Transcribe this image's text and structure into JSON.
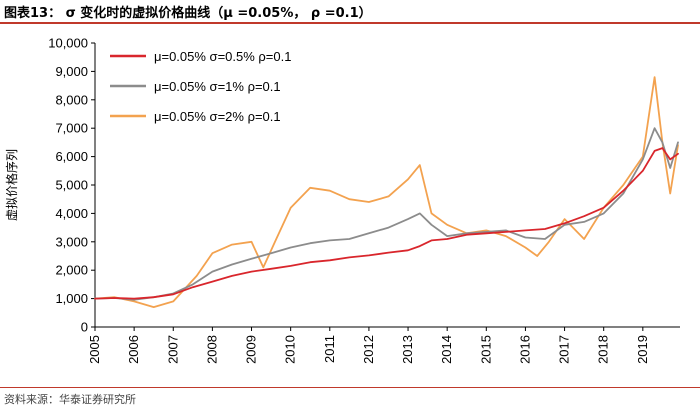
{
  "header": {
    "title": "图表13：  σ 变化时的虚拟价格曲线（μ =0.05%， ρ =0.1）"
  },
  "footer": {
    "source": "资料来源：华泰证券研究所"
  },
  "chart_data": {
    "type": "line",
    "title": "σ 变化时的虚拟价格曲线（μ =0.05%， ρ =0.1）",
    "ylabel": "虚拟价格序列",
    "xlabel": "",
    "ylim": [
      0,
      10000
    ],
    "xlim": [
      2005,
      2019.95
    ],
    "yticks": [
      0,
      1000,
      2000,
      3000,
      4000,
      5000,
      6000,
      7000,
      8000,
      9000,
      10000
    ],
    "ytick_labels": [
      "0",
      "1,000",
      "2,000",
      "3,000",
      "4,000",
      "5,000",
      "6,000",
      "7,000",
      "8,000",
      "9,000",
      "10,000"
    ],
    "xticks": [
      "2005",
      "2006",
      "2007",
      "2008",
      "2009",
      "2010",
      "2011",
      "2012",
      "2013",
      "2014",
      "2015",
      "2016",
      "2017",
      "2018",
      "2019"
    ],
    "grid": false,
    "legend_position": "top-left",
    "series": [
      {
        "name": "μ=0.05% σ=0.5% ρ=0.1",
        "color": "#d9262c",
        "x": [
          2005,
          2005.5,
          2006,
          2006.5,
          2007,
          2007.5,
          2008,
          2008.5,
          2009,
          2009.5,
          2010,
          2010.5,
          2011,
          2011.5,
          2012,
          2012.5,
          2013,
          2013.3,
          2013.6,
          2014,
          2014.5,
          2015,
          2015.5,
          2016,
          2016.5,
          2017,
          2017.5,
          2018,
          2018.5,
          2019,
          2019.3,
          2019.5,
          2019.7,
          2019.9
        ],
        "values": [
          1000,
          1020,
          1000,
          1050,
          1150,
          1400,
          1600,
          1800,
          1950,
          2050,
          2150,
          2280,
          2350,
          2450,
          2520,
          2620,
          2700,
          2850,
          3050,
          3100,
          3250,
          3300,
          3350,
          3400,
          3450,
          3650,
          3900,
          4200,
          4800,
          5500,
          6200,
          6300,
          5900,
          6100
        ]
      },
      {
        "name": "μ=0.05% σ=1% ρ=0.1",
        "color": "#8c8c8c",
        "x": [
          2005,
          2005.5,
          2006,
          2006.5,
          2007,
          2007.5,
          2008,
          2008.5,
          2009,
          2009.5,
          2010,
          2010.5,
          2011,
          2011.5,
          2012,
          2012.5,
          2013,
          2013.3,
          2013.6,
          2014,
          2014.5,
          2015,
          2015.5,
          2016,
          2016.5,
          2017,
          2017.5,
          2018,
          2018.5,
          2019,
          2019.3,
          2019.5,
          2019.7,
          2019.9
        ],
        "values": [
          1000,
          1020,
          960,
          1050,
          1180,
          1500,
          1950,
          2200,
          2400,
          2600,
          2800,
          2950,
          3050,
          3100,
          3300,
          3500,
          3800,
          4000,
          3600,
          3200,
          3300,
          3350,
          3400,
          3150,
          3100,
          3600,
          3700,
          4000,
          4700,
          5900,
          7000,
          6500,
          5600,
          6500
        ]
      },
      {
        "name": "μ=0.05% σ=2% ρ=0.1",
        "color": "#f3a24f",
        "x": [
          2005,
          2005.5,
          2006,
          2006.5,
          2007,
          2007.2,
          2007.6,
          2008,
          2008.5,
          2009,
          2009.3,
          2009.6,
          2010,
          2010.5,
          2011,
          2011.5,
          2012,
          2012.5,
          2013,
          2013.3,
          2013.6,
          2014,
          2014.5,
          2015,
          2015.5,
          2016,
          2016.3,
          2016.6,
          2017,
          2017.5,
          2018,
          2018.5,
          2019,
          2019.3,
          2019.5,
          2019.7,
          2019.9
        ],
        "values": [
          1000,
          1050,
          900,
          700,
          900,
          1200,
          1800,
          2600,
          2900,
          3000,
          2100,
          3000,
          4200,
          4900,
          4800,
          4500,
          4400,
          4600,
          5200,
          5700,
          4000,
          3600,
          3300,
          3400,
          3200,
          2800,
          2500,
          3000,
          3800,
          3100,
          4200,
          5000,
          6000,
          8800,
          6500,
          4700,
          6400
        ]
      }
    ]
  }
}
